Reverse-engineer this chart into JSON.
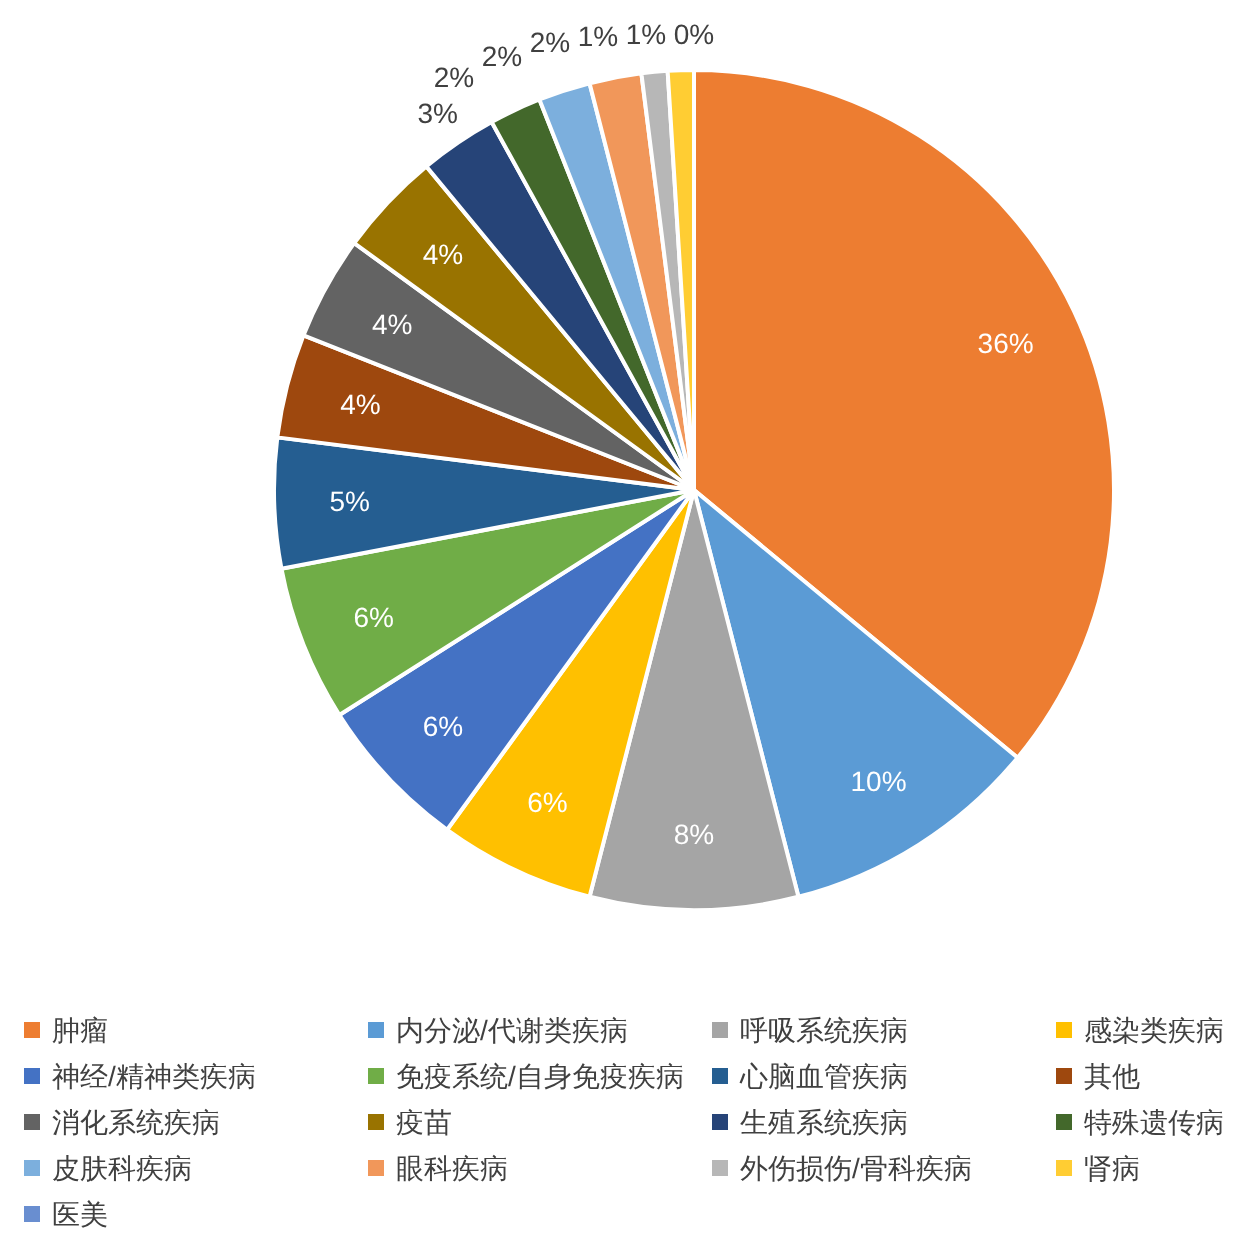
{
  "chart_data": {
    "type": "pie",
    "categories": [
      "肿瘤",
      "内分泌/代谢类疾病",
      "呼吸系统疾病",
      "感染类疾病",
      "神经/精神类疾病",
      "免疫系统/自身免疫疾病",
      "心脑血管疾病",
      "其他",
      "消化系统疾病",
      "疫苗",
      "生殖系统疾病",
      "特殊遗传病",
      "皮肤科疾病",
      "眼科疾病",
      "外伤损伤/骨科疾病",
      "肾病",
      "医美"
    ],
    "values": [
      36,
      10,
      8,
      6,
      6,
      6,
      5,
      4,
      4,
      4,
      3,
      2,
      2,
      2,
      1,
      1,
      0
    ],
    "colors": [
      "#ed7d31",
      "#5b9bd5",
      "#a5a5a5",
      "#ffc000",
      "#4472c4",
      "#70ad47",
      "#255e91",
      "#9e480e",
      "#636363",
      "#997300",
      "#264478",
      "#43682b",
      "#7cafdd",
      "#f1975a",
      "#b7b7b7",
      "#ffcd33",
      "#698ed0"
    ],
    "value_labels": [
      "36%",
      "10%",
      "8%",
      "6%",
      "6%",
      "6%",
      "5%",
      "4%",
      "4%",
      "4%",
      "3%",
      "2%",
      "2%",
      "2%",
      "1%",
      "1%",
      "0%"
    ],
    "legend": "bottom"
  }
}
